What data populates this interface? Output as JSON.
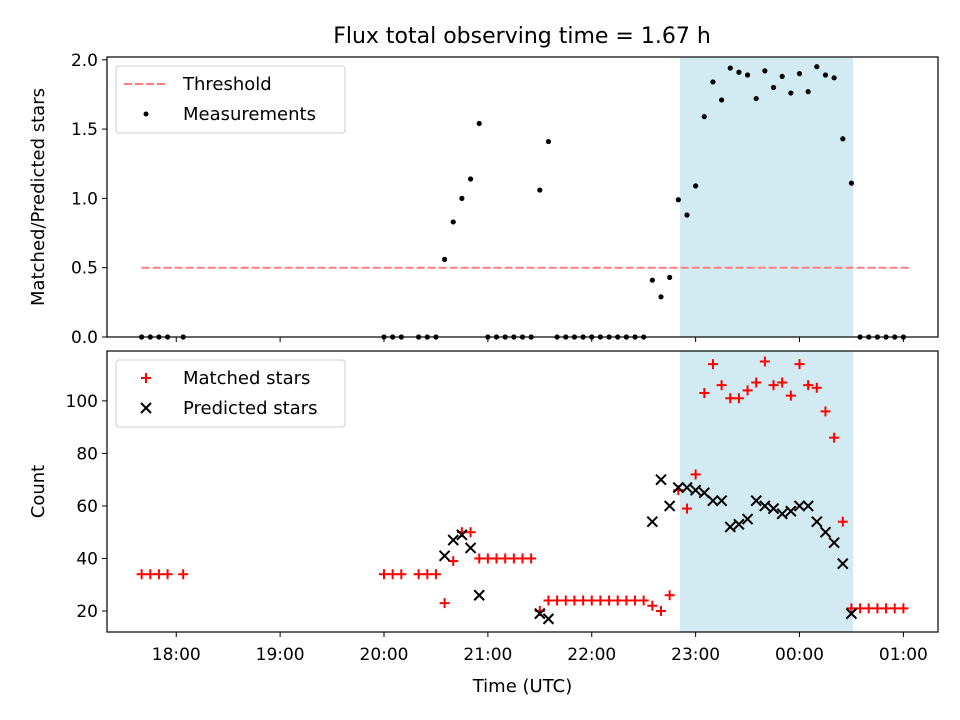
{
  "title": "Flux total observing time = 1.67 h",
  "chart_data": [
    {
      "type": "scatter",
      "xlabel": "",
      "ylabel": "Matched/Predicted stars",
      "xlim": [
        "17:20",
        "01:20"
      ],
      "ylim": [
        0.0,
        2.02
      ],
      "yticks": [
        "0.0",
        "0.5",
        "1.0",
        "1.5",
        "2.0"
      ],
      "grid": false,
      "legend_position": "top-left",
      "legend": [
        {
          "label": "Threshold",
          "marker": "dashed-line",
          "color": "#ff7f7f"
        },
        {
          "label": "Measurements",
          "marker": "dot",
          "color": "#000000"
        }
      ],
      "shaded_span": {
        "from": "22:51",
        "to": "00:31",
        "color": "#add8e6"
      },
      "threshold": {
        "value": 0.5,
        "from": "17:40",
        "to": "01:03"
      },
      "series": [
        {
          "label": "Measurements",
          "color": "#000000",
          "points": [
            [
              "17:40",
              0
            ],
            [
              "17:45",
              0
            ],
            [
              "17:50",
              0
            ],
            [
              "17:55",
              0
            ],
            [
              "18:04",
              0
            ],
            [
              "20:00",
              0
            ],
            [
              "20:05",
              0
            ],
            [
              "20:10",
              0
            ],
            [
              "20:20",
              0
            ],
            [
              "20:25",
              0
            ],
            [
              "20:30",
              0
            ],
            [
              "20:35",
              0.56
            ],
            [
              "20:40",
              0.83
            ],
            [
              "20:45",
              1.0
            ],
            [
              "20:50",
              1.14
            ],
            [
              "20:55",
              1.54
            ],
            [
              "21:00",
              0
            ],
            [
              "21:05",
              0
            ],
            [
              "21:10",
              0
            ],
            [
              "21:15",
              0
            ],
            [
              "21:20",
              0
            ],
            [
              "21:25",
              0
            ],
            [
              "21:30",
              1.06
            ],
            [
              "21:35",
              1.41
            ],
            [
              "21:40",
              0
            ],
            [
              "21:45",
              0
            ],
            [
              "21:50",
              0
            ],
            [
              "21:55",
              0
            ],
            [
              "22:00",
              0
            ],
            [
              "22:05",
              0
            ],
            [
              "22:10",
              0
            ],
            [
              "22:15",
              0
            ],
            [
              "22:20",
              0
            ],
            [
              "22:25",
              0
            ],
            [
              "22:30",
              0
            ],
            [
              "22:35",
              0.41
            ],
            [
              "22:40",
              0.29
            ],
            [
              "22:45",
              0.43
            ],
            [
              "22:50",
              0.99
            ],
            [
              "22:55",
              0.88
            ],
            [
              "23:00",
              1.09
            ],
            [
              "23:05",
              1.59
            ],
            [
              "23:10",
              1.84
            ],
            [
              "23:15",
              1.71
            ],
            [
              "23:20",
              1.94
            ],
            [
              "23:25",
              1.91
            ],
            [
              "23:30",
              1.89
            ],
            [
              "23:35",
              1.72
            ],
            [
              "23:40",
              1.92
            ],
            [
              "23:45",
              1.8
            ],
            [
              "23:50",
              1.88
            ],
            [
              "23:55",
              1.76
            ],
            [
              "00:00",
              1.9
            ],
            [
              "00:05",
              1.77
            ],
            [
              "00:10",
              1.95
            ],
            [
              "00:15",
              1.89
            ],
            [
              "00:20",
              1.87
            ],
            [
              "00:25",
              1.43
            ],
            [
              "00:30",
              1.11
            ],
            [
              "00:35",
              0
            ],
            [
              "00:40",
              0
            ],
            [
              "00:45",
              0
            ],
            [
              "00:50",
              0
            ],
            [
              "00:55",
              0
            ],
            [
              "01:00",
              0
            ]
          ]
        }
      ]
    },
    {
      "type": "scatter",
      "xlabel": "Time (UTC)",
      "ylabel": "Count",
      "xlim": [
        "17:20",
        "01:20"
      ],
      "ylim": [
        12,
        119
      ],
      "yticks": [
        "20",
        "40",
        "60",
        "80",
        "100"
      ],
      "xticks": [
        "18:00",
        "19:00",
        "20:00",
        "21:00",
        "22:00",
        "23:00",
        "00:00",
        "01:00"
      ],
      "grid": false,
      "legend_position": "top-left",
      "legend": [
        {
          "label": "Matched stars",
          "marker": "plus",
          "color": "#ff0000"
        },
        {
          "label": "Predicted stars",
          "marker": "x",
          "color": "#000000"
        }
      ],
      "shaded_span": {
        "from": "22:51",
        "to": "00:31",
        "color": "#add8e6"
      },
      "series": [
        {
          "label": "Matched stars",
          "color": "#ff0000",
          "points": [
            [
              "17:40",
              34
            ],
            [
              "17:45",
              34
            ],
            [
              "17:50",
              34
            ],
            [
              "17:55",
              34
            ],
            [
              "18:04",
              34
            ],
            [
              "20:00",
              34
            ],
            [
              "20:05",
              34
            ],
            [
              "20:10",
              34
            ],
            [
              "20:20",
              34
            ],
            [
              "20:25",
              34
            ],
            [
              "20:30",
              34
            ],
            [
              "20:35",
              23
            ],
            [
              "20:40",
              39
            ],
            [
              "20:45",
              50
            ],
            [
              "20:50",
              50
            ],
            [
              "20:55",
              40
            ],
            [
              "21:00",
              40
            ],
            [
              "21:05",
              40
            ],
            [
              "21:10",
              40
            ],
            [
              "21:15",
              40
            ],
            [
              "21:20",
              40
            ],
            [
              "21:25",
              40
            ],
            [
              "21:30",
              20
            ],
            [
              "21:35",
              24
            ],
            [
              "21:40",
              24
            ],
            [
              "21:45",
              24
            ],
            [
              "21:50",
              24
            ],
            [
              "21:55",
              24
            ],
            [
              "22:00",
              24
            ],
            [
              "22:05",
              24
            ],
            [
              "22:10",
              24
            ],
            [
              "22:15",
              24
            ],
            [
              "22:20",
              24
            ],
            [
              "22:25",
              24
            ],
            [
              "22:30",
              24
            ],
            [
              "22:35",
              22
            ],
            [
              "22:40",
              20
            ],
            [
              "22:45",
              26
            ],
            [
              "22:50",
              66
            ],
            [
              "22:55",
              59
            ],
            [
              "23:00",
              72
            ],
            [
              "23:05",
              103
            ],
            [
              "23:10",
              114
            ],
            [
              "23:15",
              106
            ],
            [
              "23:20",
              101
            ],
            [
              "23:25",
              101
            ],
            [
              "23:30",
              104
            ],
            [
              "23:35",
              107
            ],
            [
              "23:40",
              115
            ],
            [
              "23:45",
              106
            ],
            [
              "23:50",
              107
            ],
            [
              "23:55",
              102
            ],
            [
              "00:00",
              114
            ],
            [
              "00:05",
              106
            ],
            [
              "00:10",
              105
            ],
            [
              "00:15",
              96
            ],
            [
              "00:20",
              86
            ],
            [
              "00:25",
              54
            ],
            [
              "00:30",
              21
            ],
            [
              "00:35",
              21
            ],
            [
              "00:40",
              21
            ],
            [
              "00:45",
              21
            ],
            [
              "00:50",
              21
            ],
            [
              "00:55",
              21
            ],
            [
              "01:00",
              21
            ]
          ]
        },
        {
          "label": "Predicted stars",
          "color": "#000000",
          "points": [
            [
              "20:35",
              41
            ],
            [
              "20:40",
              47
            ],
            [
              "20:45",
              49
            ],
            [
              "20:50",
              44
            ],
            [
              "20:55",
              26
            ],
            [
              "21:30",
              19
            ],
            [
              "21:35",
              17
            ],
            [
              "22:35",
              54
            ],
            [
              "22:40",
              70
            ],
            [
              "22:45",
              60
            ],
            [
              "22:50",
              67
            ],
            [
              "22:55",
              67
            ],
            [
              "23:00",
              66
            ],
            [
              "23:05",
              65
            ],
            [
              "23:10",
              62
            ],
            [
              "23:15",
              62
            ],
            [
              "23:20",
              52
            ],
            [
              "23:25",
              53
            ],
            [
              "23:30",
              55
            ],
            [
              "23:35",
              62
            ],
            [
              "23:40",
              60
            ],
            [
              "23:45",
              59
            ],
            [
              "23:50",
              57
            ],
            [
              "23:55",
              58
            ],
            [
              "00:00",
              60
            ],
            [
              "00:05",
              60
            ],
            [
              "00:10",
              54
            ],
            [
              "00:15",
              50
            ],
            [
              "00:20",
              46
            ],
            [
              "00:25",
              38
            ],
            [
              "00:30",
              19
            ]
          ]
        }
      ]
    }
  ]
}
